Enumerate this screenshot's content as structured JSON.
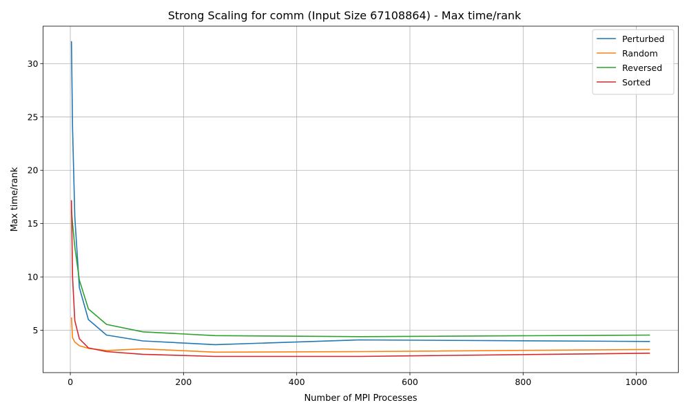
{
  "chart_data": {
    "type": "line",
    "title": "Strong Scaling for comm (Input Size 67108864) - Max time/rank",
    "xlabel": "Number of MPI Processes",
    "ylabel": "Max time/rank",
    "xlim": [
      -48.15,
      1074.15
    ],
    "ylim": [
      1.03,
      33.51
    ],
    "xticks": [
      0,
      200,
      400,
      600,
      800,
      1000
    ],
    "yticks": [
      5,
      10,
      15,
      20,
      25,
      30
    ],
    "grid": true,
    "legend_position": "top-right",
    "series": [
      {
        "name": "Perturbed",
        "color": "#1f77b4",
        "x": [
          2,
          4,
          8,
          16,
          32,
          64,
          128,
          256,
          512,
          1024
        ],
        "y": [
          32.1,
          24.0,
          15.6,
          9.0,
          6.0,
          4.55,
          4.0,
          3.65,
          4.1,
          3.95
        ]
      },
      {
        "name": "Random",
        "color": "#ff7f0e",
        "x": [
          2,
          4,
          8,
          16,
          32,
          64,
          128,
          256,
          512,
          1024
        ],
        "y": [
          6.2,
          4.3,
          3.9,
          3.55,
          3.3,
          3.1,
          3.25,
          2.95,
          3.0,
          3.2
        ]
      },
      {
        "name": "Reversed",
        "color": "#2ca02c",
        "x": [
          2,
          4,
          8,
          16,
          32,
          64,
          128,
          256,
          512,
          1024
        ],
        "y": [
          16.3,
          15.0,
          12.8,
          9.7,
          7.0,
          5.55,
          4.85,
          4.5,
          4.4,
          4.55
        ]
      },
      {
        "name": "Sorted",
        "color": "#d62728",
        "x": [
          2,
          4,
          8,
          16,
          32,
          64,
          128,
          256,
          512,
          1024
        ],
        "y": [
          17.2,
          10.0,
          5.9,
          4.2,
          3.35,
          3.0,
          2.75,
          2.55,
          2.55,
          2.85
        ]
      }
    ]
  }
}
